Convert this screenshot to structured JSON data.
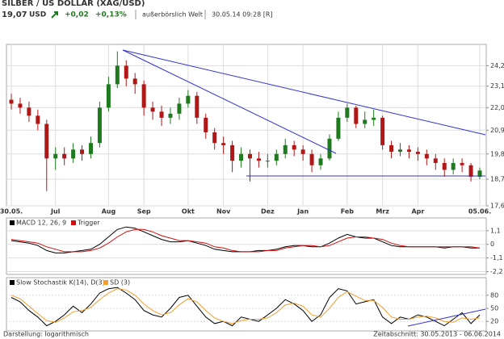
{
  "header": {
    "title": "SILBER / US DOLLAR (XAG/USD)",
    "price": "19,07",
    "currency": "USD",
    "change": "+0,02",
    "change_pct": "+0,13%",
    "exchange": "außerbörslich Welt",
    "timestamp": "30.05.14 09:28 [R]"
  },
  "chart_data": [
    {
      "type": "candlestick",
      "log_scale": true,
      "grid": true,
      "categories": [
        "30.05.",
        null,
        null,
        null,
        null,
        "Jul",
        null,
        null,
        null,
        null,
        null,
        "Aug",
        null,
        null,
        null,
        "Sep",
        null,
        null,
        null,
        null,
        "Okt",
        null,
        null,
        null,
        "Nov",
        null,
        null,
        null,
        null,
        "Dez",
        null,
        null,
        null,
        "Jan",
        null,
        null,
        null,
        null,
        "Feb",
        null,
        null,
        null,
        "Mrz",
        null,
        null,
        null,
        "Apr",
        null,
        null,
        null,
        null,
        null,
        null,
        "05.06."
      ],
      "open": [
        22.4,
        22.2,
        22.0,
        21.6,
        21.2,
        19.6,
        19.8,
        19.6,
        20.0,
        19.8,
        20.3,
        22.0,
        23.2,
        24.2,
        23.5,
        23.2,
        22.0,
        21.8,
        21.5,
        21.7,
        22.2,
        22.6,
        21.5,
        20.8,
        20.3,
        20.2,
        19.5,
        19.8,
        19.6,
        19.5,
        19.5,
        19.8,
        20.2,
        20.0,
        19.8,
        19.3,
        19.6,
        20.5,
        21.5,
        22.0,
        21.2,
        21.4,
        21.5,
        20.2,
        19.9,
        20.0,
        19.9,
        19.8,
        19.6,
        19.4,
        19.1,
        19.4,
        19.3,
        18.8
      ],
      "high": [
        22.7,
        22.5,
        22.3,
        21.9,
        21.4,
        20.1,
        20.1,
        20.3,
        20.2,
        20.6,
        22.3,
        23.6,
        25.0,
        24.5,
        23.8,
        23.4,
        22.3,
        22.1,
        22.0,
        22.5,
        22.9,
        22.8,
        21.7,
        21.0,
        20.6,
        20.4,
        20.1,
        20.0,
        19.9,
        19.8,
        20.0,
        20.5,
        20.4,
        20.2,
        20.0,
        19.8,
        20.7,
        21.8,
        22.2,
        22.1,
        21.8,
        21.9,
        21.6,
        20.4,
        20.3,
        20.2,
        20.1,
        20.0,
        19.8,
        19.6,
        19.6,
        19.6,
        19.4,
        19.2
      ],
      "low": [
        21.9,
        21.7,
        21.3,
        20.9,
        18.2,
        19.1,
        19.3,
        19.4,
        19.5,
        19.6,
        20.1,
        21.8,
        23.0,
        23.1,
        22.7,
        21.6,
        21.4,
        21.1,
        21.2,
        21.4,
        22.0,
        21.2,
        20.5,
        20.0,
        19.8,
        19.0,
        19.2,
        18.6,
        19.2,
        19.2,
        19.3,
        19.6,
        19.7,
        19.5,
        19.0,
        19.1,
        19.5,
        20.4,
        21.3,
        21.0,
        21.0,
        21.1,
        20.0,
        19.6,
        19.7,
        19.6,
        19.5,
        19.3,
        19.1,
        18.8,
        18.9,
        19.0,
        18.6,
        18.7
      ],
      "close": [
        22.2,
        22.0,
        21.6,
        21.2,
        19.6,
        19.8,
        19.6,
        20.0,
        19.8,
        20.3,
        22.0,
        23.2,
        24.2,
        23.5,
        23.2,
        22.0,
        21.8,
        21.5,
        21.7,
        22.2,
        22.6,
        21.5,
        20.8,
        20.3,
        20.2,
        19.5,
        19.8,
        19.6,
        19.5,
        19.5,
        19.8,
        20.2,
        20.0,
        19.8,
        19.3,
        19.6,
        20.5,
        21.5,
        22.0,
        21.2,
        21.4,
        21.5,
        20.2,
        19.9,
        20.0,
        19.9,
        19.8,
        19.6,
        19.4,
        19.1,
        19.4,
        19.3,
        18.8,
        19.07
      ],
      "up_color": "#1f7a1f",
      "down_color": "#b01818",
      "ylim": [
        17.6,
        25.4
      ],
      "yticks": [
        {
          "value": 17.6,
          "label": "17,6"
        },
        {
          "value": 18.7,
          "label": "18,7"
        },
        {
          "value": 19.8,
          "label": "19,8"
        },
        {
          "value": 20.9,
          "label": "20,9"
        },
        {
          "value": 22.0,
          "label": "22,0"
        },
        {
          "value": 23.1,
          "label": "23,1"
        },
        {
          "value": 24.2,
          "label": "24,2"
        }
      ]
    },
    {
      "type": "line",
      "grid": true,
      "series": [
        {
          "name": "MACD 12, 26, 9",
          "color": "#000000",
          "values": [
            0.3,
            0.2,
            0.1,
            -0.1,
            -0.5,
            -0.7,
            -0.7,
            -0.6,
            -0.5,
            -0.4,
            0.0,
            0.6,
            1.2,
            1.4,
            1.3,
            1.0,
            0.7,
            0.4,
            0.2,
            0.2,
            0.3,
            0.1,
            -0.1,
            -0.4,
            -0.5,
            -0.6,
            -0.6,
            -0.6,
            -0.5,
            -0.5,
            -0.4,
            -0.2,
            -0.1,
            -0.1,
            -0.2,
            -0.2,
            0.1,
            0.5,
            0.8,
            0.6,
            0.5,
            0.5,
            0.2,
            -0.1,
            -0.2,
            -0.2,
            -0.2,
            -0.2,
            -0.2,
            -0.3,
            -0.2,
            -0.2,
            -0.3,
            -0.3
          ]
        },
        {
          "name": "Trigger",
          "color": "#d01010",
          "values": [
            0.4,
            0.3,
            0.2,
            0.1,
            -0.2,
            -0.4,
            -0.6,
            -0.6,
            -0.6,
            -0.5,
            -0.3,
            0.1,
            0.6,
            1.0,
            1.2,
            1.2,
            1.0,
            0.7,
            0.5,
            0.3,
            0.3,
            0.2,
            0.1,
            -0.2,
            -0.3,
            -0.5,
            -0.6,
            -0.6,
            -0.6,
            -0.5,
            -0.5,
            -0.3,
            -0.2,
            -0.1,
            -0.1,
            -0.2,
            -0.1,
            0.2,
            0.5,
            0.6,
            0.6,
            0.5,
            0.4,
            0.1,
            -0.1,
            -0.2,
            -0.2,
            -0.2,
            -0.2,
            -0.2,
            -0.2,
            -0.2,
            -0.2,
            -0.3
          ]
        }
      ],
      "ylim": [
        -2.3,
        2.0
      ],
      "yticks": [
        {
          "value": -2.2,
          "label": "-2,2"
        },
        {
          "value": -1.1,
          "label": "-1,1"
        },
        0,
        {
          "value": 1.1,
          "label": "1,1"
        }
      ]
    },
    {
      "type": "line",
      "grid": true,
      "series": [
        {
          "name": "Slow Stochastik K(14), D(3)",
          "color": "#000000",
          "values": [
            75,
            65,
            45,
            30,
            10,
            20,
            35,
            55,
            40,
            60,
            85,
            95,
            98,
            85,
            70,
            45,
            35,
            30,
            50,
            75,
            80,
            55,
            30,
            15,
            20,
            10,
            30,
            25,
            20,
            35,
            50,
            70,
            60,
            45,
            20,
            35,
            75,
            95,
            90,
            60,
            65,
            70,
            30,
            15,
            30,
            25,
            35,
            30,
            20,
            10,
            25,
            40,
            15,
            35
          ]
        },
        {
          "name": "SD (3)",
          "color": "#f0a030",
          "values": [
            80,
            72,
            55,
            38,
            22,
            18,
            28,
            42,
            45,
            52,
            70,
            85,
            95,
            92,
            80,
            60,
            45,
            35,
            40,
            58,
            72,
            65,
            45,
            28,
            20,
            15,
            22,
            25,
            25,
            28,
            40,
            58,
            62,
            55,
            35,
            30,
            50,
            75,
            88,
            78,
            68,
            68,
            52,
            30,
            25,
            25,
            30,
            32,
            28,
            20,
            18,
            28,
            25,
            28
          ]
        }
      ],
      "ylim": [
        0,
        100
      ],
      "yticks": [
        20,
        50,
        80
      ]
    }
  ],
  "footer": {
    "display": "Darstellung: logarithmisch",
    "period": "Zeitabschnitt: 30.05.2013 - 06.06.2014"
  }
}
